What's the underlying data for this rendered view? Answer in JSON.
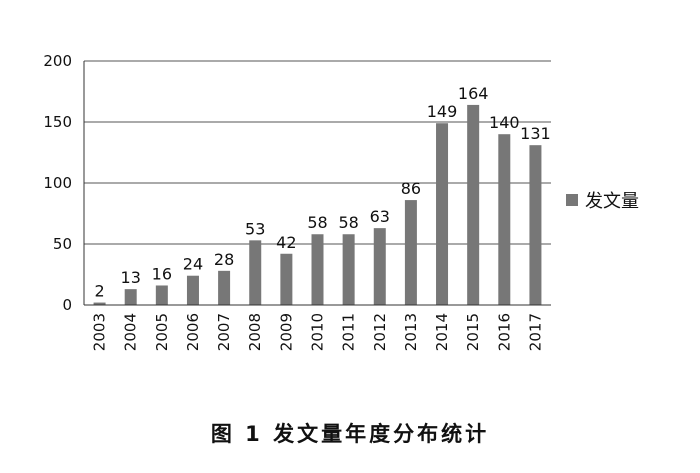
{
  "caption": "图 1  发文量年度分布统计",
  "chart_data": {
    "type": "bar",
    "title": "",
    "xlabel": "",
    "ylabel": "",
    "categories": [
      "2003",
      "2004",
      "2005",
      "2006",
      "2007",
      "2008",
      "2009",
      "2010",
      "2011",
      "2012",
      "2013",
      "2014",
      "2015",
      "2016",
      "2017"
    ],
    "series": [
      {
        "name": "发文量",
        "values": [
          2,
          13,
          16,
          24,
          28,
          53,
          42,
          58,
          58,
          63,
          86,
          149,
          164,
          140,
          131
        ],
        "color": "#777777"
      }
    ],
    "ylim": [
      0,
      200
    ],
    "yticks": [
      0,
      50,
      100,
      150,
      200
    ],
    "grid": true,
    "legend_position": "right"
  }
}
